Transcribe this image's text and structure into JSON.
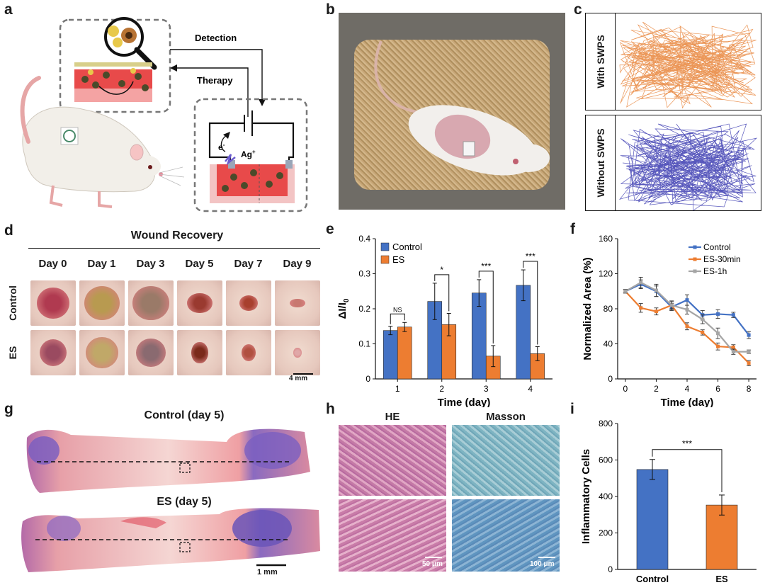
{
  "panels": {
    "a": {
      "letter": "a",
      "detection": "Detection",
      "therapy": "Therapy",
      "electron": "e",
      "electron_sup": "-",
      "ion": "Ag",
      "ion_sup": "+"
    },
    "b": {
      "letter": "b"
    },
    "c": {
      "letter": "c",
      "with_label": "With SWPS",
      "without_label": "Without SWPS"
    },
    "d": {
      "letter": "d",
      "title": "Wound Recovery",
      "days": [
        "Day 0",
        "Day 1",
        "Day 3",
        "Day 5",
        "Day 7",
        "Day 9"
      ],
      "rows": [
        "Control",
        "ES"
      ],
      "scalebar": "4 mm"
    },
    "e": {
      "letter": "e"
    },
    "f": {
      "letter": "f"
    },
    "g": {
      "letter": "g",
      "top_title": "Control (day 5)",
      "bottom_title": "ES (day 5)",
      "scalebar": "1 mm"
    },
    "h": {
      "letter": "h",
      "he_label": "HE",
      "masson_label": "Masson",
      "scale_he": "50 μm",
      "scale_masson": "100 μm"
    },
    "i": {
      "letter": "i"
    }
  },
  "chart_data": [
    {
      "panel": "e",
      "type": "bar",
      "categories": [
        "1",
        "2",
        "3",
        "4"
      ],
      "series": [
        {
          "name": "Control",
          "values": [
            0.138,
            0.221,
            0.245,
            0.267
          ],
          "errors": [
            0.012,
            0.052,
            0.038,
            0.044
          ],
          "color": "#4472C4"
        },
        {
          "name": "ES",
          "values": [
            0.148,
            0.155,
            0.065,
            0.072
          ],
          "errors": [
            0.013,
            0.032,
            0.03,
            0.02
          ],
          "color": "#ED7D31"
        }
      ],
      "significance": [
        "NS",
        "*",
        "***",
        "***"
      ],
      "xlabel": "Time (day)",
      "ylabel": "ΔI/I",
      "ylabel_sub": "0",
      "ylim": [
        0,
        0.4
      ],
      "yticks": [
        "0",
        "0.1",
        "0.2",
        "0.3",
        "0.4"
      ],
      "legend": "top-left"
    },
    {
      "panel": "f",
      "type": "line",
      "x": [
        0,
        1,
        2,
        3,
        4,
        5,
        6,
        7,
        8
      ],
      "series": [
        {
          "name": "Control",
          "values": [
            100,
            108,
            100,
            82,
            90,
            73,
            74,
            73,
            50
          ],
          "errors": [
            2,
            5,
            6,
            4,
            6,
            5,
            5,
            3,
            4
          ],
          "color": "#4472C4"
        },
        {
          "name": "ES-30min",
          "values": [
            100,
            81,
            77,
            84,
            60,
            53,
            37,
            36,
            18
          ],
          "errors": [
            2,
            5,
            4,
            4,
            4,
            3,
            4,
            3,
            3
          ],
          "color": "#ED7D31"
        },
        {
          "name": "ES-1h",
          "values": [
            100,
            110,
            101,
            84,
            79,
            68,
            52,
            31,
            31
          ],
          "errors": [
            2,
            6,
            7,
            5,
            5,
            5,
            6,
            3,
            2
          ],
          "color": "#A5A5A5"
        }
      ],
      "xlabel": "Time (day)",
      "ylabel": "Normalized Area (%)",
      "xlim": [
        -0.5,
        8.5
      ],
      "xticks": [
        "0",
        "2",
        "4",
        "6",
        "8"
      ],
      "ylim": [
        0,
        160
      ],
      "yticks": [
        "0",
        "40",
        "80",
        "120",
        "160"
      ],
      "legend": "top-right"
    },
    {
      "panel": "i",
      "type": "bar",
      "categories": [
        "Control",
        "ES"
      ],
      "values": [
        548,
        353
      ],
      "errors": [
        55,
        55
      ],
      "colors": [
        "#4472C4",
        "#ED7D31"
      ],
      "significance": "***",
      "ylabel": "Inflammatory Cells",
      "ylim": [
        0,
        800
      ],
      "yticks": [
        "0",
        "200",
        "400",
        "600",
        "800"
      ]
    }
  ]
}
